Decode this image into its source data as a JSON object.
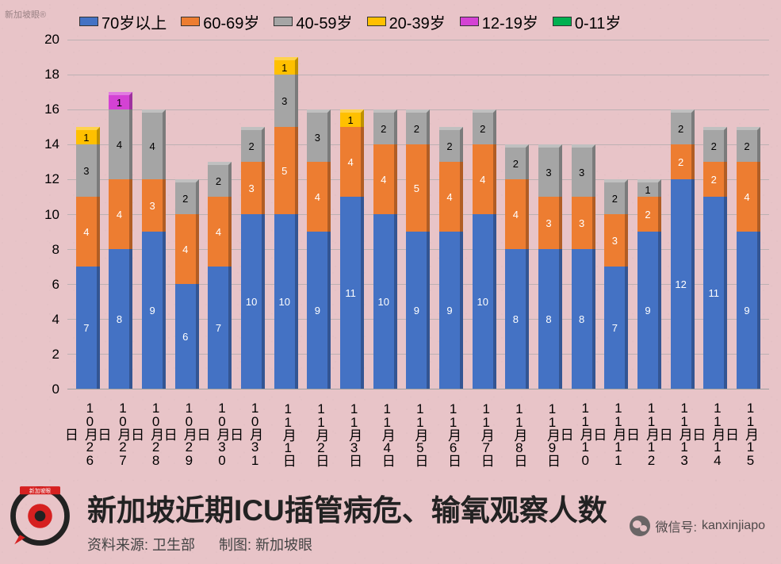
{
  "chart": {
    "type": "stacked-bar",
    "background_color": "#e8c4c8",
    "grid_color": "#aaaaaa",
    "ylim": [
      0,
      20
    ],
    "ytick_step": 2,
    "y_ticks": [
      0,
      2,
      4,
      6,
      8,
      10,
      12,
      14,
      16,
      18,
      20
    ],
    "series": [
      {
        "key": "age70plus",
        "label": "70岁以上",
        "color": "#4472c4",
        "text_color": "#ffffff"
      },
      {
        "key": "age60_69",
        "label": "60-69岁",
        "color": "#ed7d31",
        "text_color": "#ffffff"
      },
      {
        "key": "age40_59",
        "label": "40-59岁",
        "color": "#a5a5a5",
        "text_color": "#000000"
      },
      {
        "key": "age20_39",
        "label": "20-39岁",
        "color": "#ffc000",
        "text_color": "#000000"
      },
      {
        "key": "age12_19",
        "label": "12-19岁",
        "color": "#d442d4",
        "text_color": "#000000"
      },
      {
        "key": "age0_11",
        "label": "0-11岁",
        "color": "#00b050",
        "text_color": "#000000"
      }
    ],
    "categories": [
      "10月26日",
      "10月27日",
      "10月28日",
      "10月29日",
      "10月30日",
      "10月31日",
      "11月1日",
      "11月2日",
      "11月3日",
      "11月4日",
      "11月5日",
      "11月6日",
      "11月7日",
      "11月8日",
      "11月9日",
      "11月10日",
      "11月11日",
      "11月12日",
      "11月13日",
      "11月14日",
      "11月15日"
    ],
    "data": [
      {
        "age70plus": 7,
        "age60_69": 4,
        "age40_59": 3,
        "age20_39": 1,
        "age12_19": 0,
        "age0_11": 0
      },
      {
        "age70plus": 8,
        "age60_69": 4,
        "age40_59": 4,
        "age20_39": 0,
        "age12_19": 1,
        "age0_11": 0
      },
      {
        "age70plus": 9,
        "age60_69": 3,
        "age40_59": 4,
        "age20_39": 0,
        "age12_19": 0,
        "age0_11": 0
      },
      {
        "age70plus": 6,
        "age60_69": 4,
        "age40_59": 2,
        "age20_39": 0,
        "age12_19": 0,
        "age0_11": 0
      },
      {
        "age70plus": 7,
        "age60_69": 4,
        "age40_59": 2,
        "age20_39": 0,
        "age12_19": 0,
        "age0_11": 0
      },
      {
        "age70plus": 10,
        "age60_69": 3,
        "age40_59": 2,
        "age20_39": 0,
        "age12_19": 0,
        "age0_11": 0
      },
      {
        "age70plus": 10,
        "age60_69": 5,
        "age40_59": 3,
        "age20_39": 1,
        "age12_19": 0,
        "age0_11": 0
      },
      {
        "age70plus": 9,
        "age60_69": 4,
        "age40_59": 3,
        "age20_39": 0,
        "age12_19": 0,
        "age0_11": 0
      },
      {
        "age70plus": 11,
        "age60_69": 4,
        "age40_59": 0,
        "age20_39": 1,
        "age12_19": 0,
        "age0_11": 0
      },
      {
        "age70plus": 10,
        "age60_69": 4,
        "age40_59": 2,
        "age20_39": 0,
        "age12_19": 0,
        "age0_11": 0
      },
      {
        "age70plus": 9,
        "age60_69": 5,
        "age40_59": 2,
        "age20_39": 0,
        "age12_19": 0,
        "age0_11": 0
      },
      {
        "age70plus": 9,
        "age60_69": 4,
        "age40_59": 2,
        "age20_39": 0,
        "age12_19": 0,
        "age0_11": 0
      },
      {
        "age70plus": 10,
        "age60_69": 4,
        "age40_59": 2,
        "age20_39": 0,
        "age12_19": 0,
        "age0_11": 0
      },
      {
        "age70plus": 8,
        "age60_69": 4,
        "age40_59": 2,
        "age20_39": 0,
        "age12_19": 0,
        "age0_11": 0
      },
      {
        "age70plus": 8,
        "age60_69": 3,
        "age40_59": 3,
        "age20_39": 0,
        "age12_19": 0,
        "age0_11": 0
      },
      {
        "age70plus": 8,
        "age60_69": 3,
        "age40_59": 3,
        "age20_39": 0,
        "age12_19": 0,
        "age0_11": 0
      },
      {
        "age70plus": 7,
        "age60_69": 3,
        "age40_59": 2,
        "age20_39": 0,
        "age12_19": 0,
        "age0_11": 0
      },
      {
        "age70plus": 9,
        "age60_69": 2,
        "age40_59": 1,
        "age20_39": 0,
        "age12_19": 0,
        "age0_11": 0
      },
      {
        "age70plus": 12,
        "age60_69": 2,
        "age40_59": 2,
        "age20_39": 0,
        "age12_19": 0,
        "age0_11": 0
      },
      {
        "age70plus": 11,
        "age60_69": 2,
        "age40_59": 2,
        "age20_39": 0,
        "age12_19": 0,
        "age0_11": 0
      },
      {
        "age70plus": 9,
        "age60_69": 4,
        "age40_59": 2,
        "age20_39": 0,
        "age12_19": 0,
        "age0_11": 0
      }
    ],
    "label_fontsize": 17,
    "value_fontsize": 13,
    "legend_fontsize": 20
  },
  "title": "新加坡近期ICU插管病危、输氧观察人数",
  "source_label": "资料来源:",
  "source_value": "卫生部",
  "creator_label": "制图: ",
  "creator_value": "新加坡眼",
  "wechat_label": "微信号:",
  "wechat_id": "kanxinjiapo",
  "watermark": "新加坡眼®"
}
